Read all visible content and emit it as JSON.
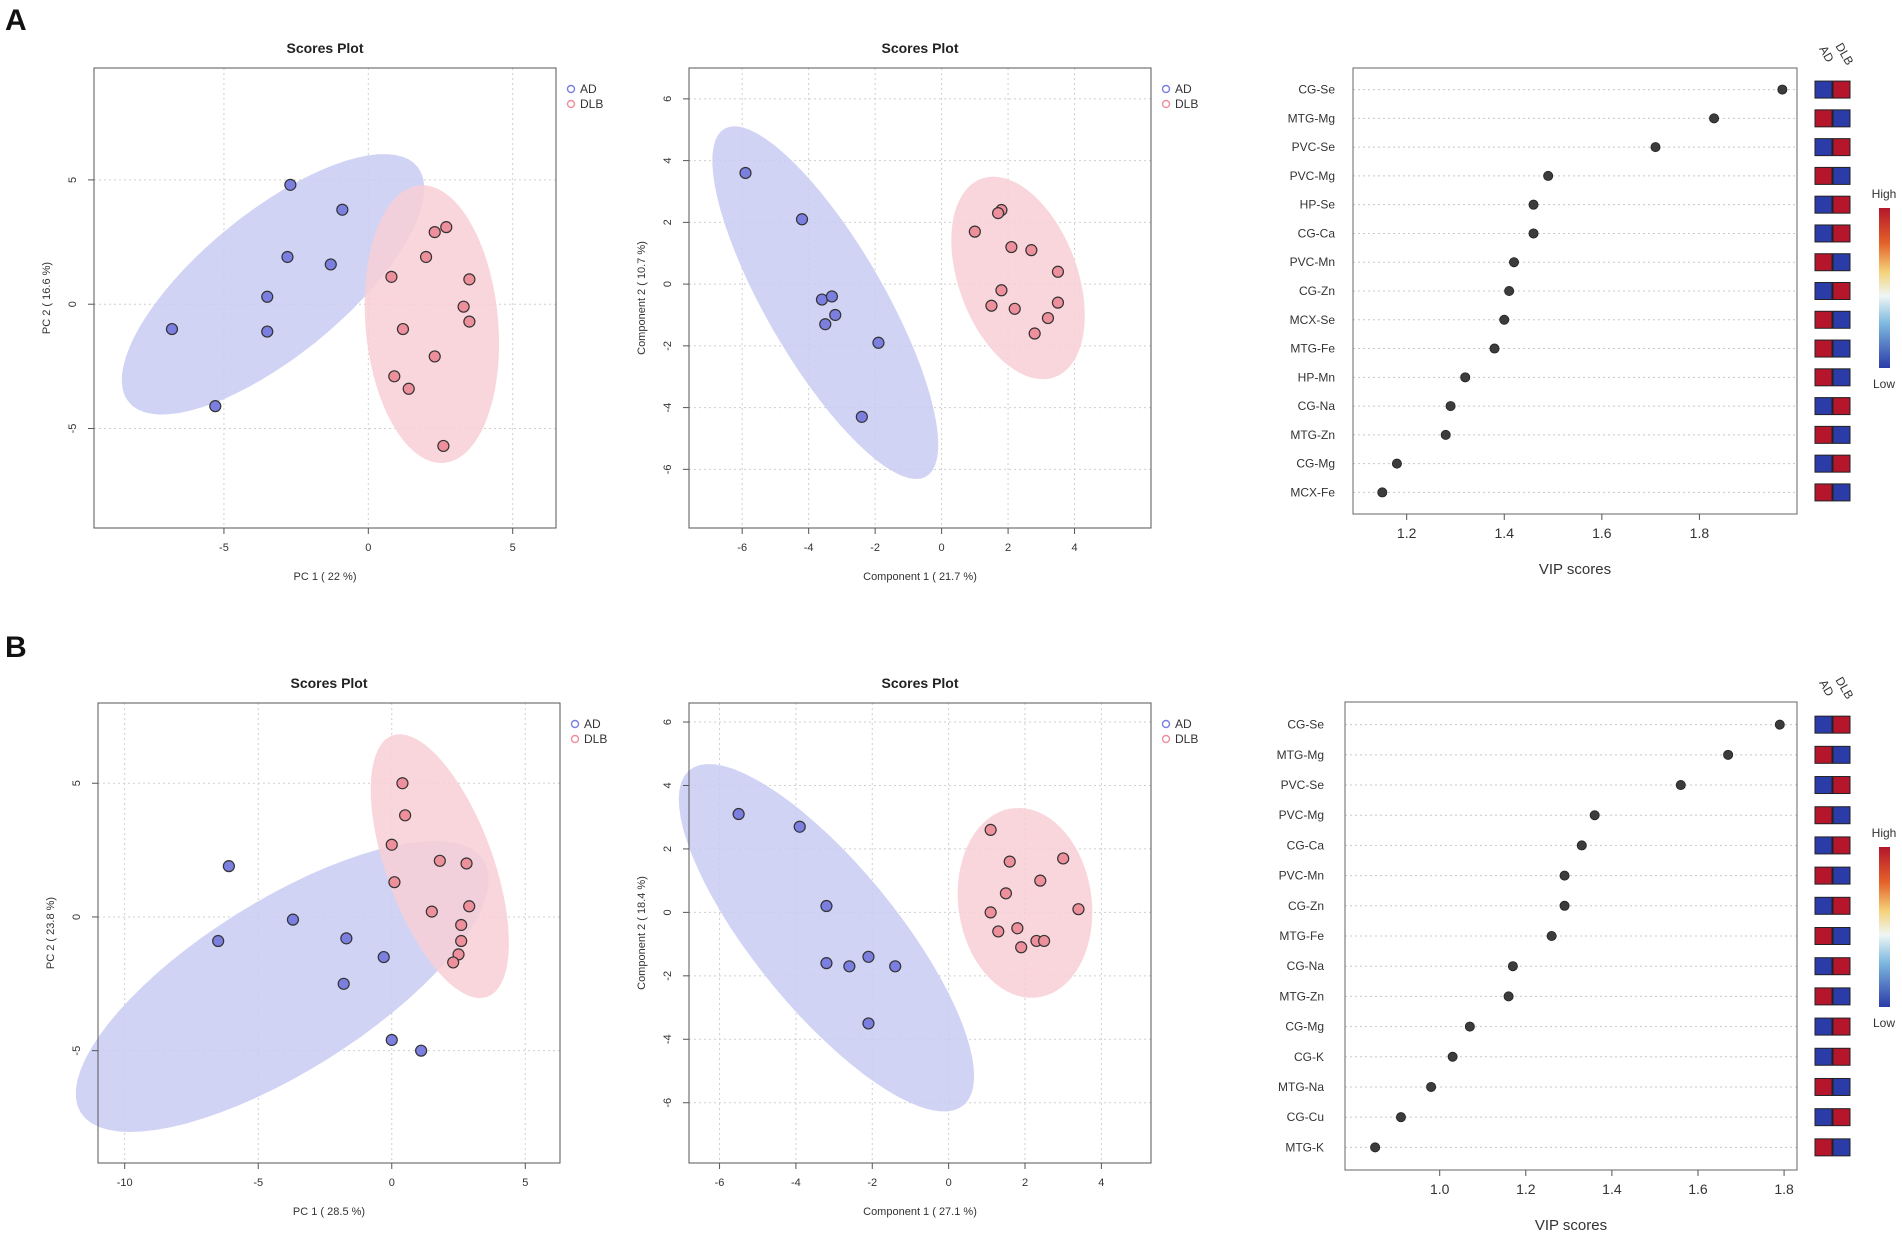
{
  "colors": {
    "AD": "#7b7fe0",
    "DLB": "#ee8f9c",
    "AD_fill": "#c9cbf3",
    "DLB_fill": "#f8cfd6",
    "high": "#b5162c",
    "low": "#2b3ca8"
  },
  "panels": {
    "A": "A",
    "B": "B"
  },
  "chart_data": [
    {
      "id": "A1",
      "type": "scatter",
      "title": "Scores Plot",
      "xlabel": "PC 1 ( 22 %)",
      "ylabel": "PC 2 ( 16.6 %)",
      "xlim": [
        -9.5,
        6.5
      ],
      "ylim": [
        -9,
        9.5
      ],
      "xticks": [
        -5,
        0,
        5
      ],
      "yticks": [
        -5,
        0,
        5
      ],
      "legend": [
        "AD",
        "DLB"
      ],
      "ellipses": [
        {
          "group": "AD",
          "cx": -3.3,
          "cy": 0.8,
          "rx": 6.9,
          "ry": 2.7,
          "angle": 45
        },
        {
          "group": "DLB",
          "cx": 2.2,
          "cy": -0.8,
          "rx": 5.6,
          "ry": 2.3,
          "angle": -86
        }
      ],
      "points": [
        {
          "group": "AD",
          "x": -2.7,
          "y": 4.8
        },
        {
          "group": "AD",
          "x": -0.9,
          "y": 3.8
        },
        {
          "group": "AD",
          "x": -2.8,
          "y": 1.9
        },
        {
          "group": "AD",
          "x": -1.3,
          "y": 1.6
        },
        {
          "group": "AD",
          "x": -3.5,
          "y": 0.3
        },
        {
          "group": "AD",
          "x": -6.8,
          "y": -1.0
        },
        {
          "group": "AD",
          "x": -3.5,
          "y": -1.1
        },
        {
          "group": "AD",
          "x": -5.3,
          "y": -4.1
        },
        {
          "group": "DLB",
          "x": 2.3,
          "y": 2.9
        },
        {
          "group": "DLB",
          "x": 2.7,
          "y": 3.1
        },
        {
          "group": "DLB",
          "x": 2.0,
          "y": 1.9
        },
        {
          "group": "DLB",
          "x": 0.8,
          "y": 1.1
        },
        {
          "group": "DLB",
          "x": 3.5,
          "y": 1.0
        },
        {
          "group": "DLB",
          "x": 3.3,
          "y": -0.1
        },
        {
          "group": "DLB",
          "x": 3.5,
          "y": -0.7
        },
        {
          "group": "DLB",
          "x": 1.2,
          "y": -1.0
        },
        {
          "group": "DLB",
          "x": 2.3,
          "y": -2.1
        },
        {
          "group": "DLB",
          "x": 0.9,
          "y": -2.9
        },
        {
          "group": "DLB",
          "x": 1.4,
          "y": -3.4
        },
        {
          "group": "DLB",
          "x": 2.6,
          "y": -5.7
        }
      ]
    },
    {
      "id": "A2",
      "type": "scatter",
      "title": "Scores Plot",
      "xlabel": "Component 1 ( 21.7 %)",
      "ylabel": "Component 2 ( 10.7 %)",
      "xlim": [
        -7.6,
        6.3
      ],
      "ylim": [
        -7.9,
        7.0
      ],
      "xticks": [
        -6,
        -4,
        -2,
        0,
        2,
        4
      ],
      "yticks": [
        -6,
        -4,
        -2,
        0,
        2,
        4,
        6
      ],
      "legend": [
        "AD",
        "DLB"
      ],
      "ellipses": [
        {
          "group": "AD",
          "cx": -3.5,
          "cy": -0.6,
          "rx": 6.4,
          "ry": 1.8,
          "angle": -62
        },
        {
          "group": "DLB",
          "cx": 2.3,
          "cy": 0.2,
          "rx": 3.4,
          "ry": 1.8,
          "angle": -72
        }
      ],
      "points": [
        {
          "group": "AD",
          "x": -5.9,
          "y": 3.6
        },
        {
          "group": "AD",
          "x": -4.2,
          "y": 2.1
        },
        {
          "group": "AD",
          "x": -3.6,
          "y": -0.5
        },
        {
          "group": "AD",
          "x": -3.3,
          "y": -0.4
        },
        {
          "group": "AD",
          "x": -3.2,
          "y": -1.0
        },
        {
          "group": "AD",
          "x": -3.5,
          "y": -1.3
        },
        {
          "group": "AD",
          "x": -1.9,
          "y": -1.9
        },
        {
          "group": "AD",
          "x": -2.4,
          "y": -4.3
        },
        {
          "group": "DLB",
          "x": 1.8,
          "y": 2.4
        },
        {
          "group": "DLB",
          "x": 1.7,
          "y": 2.3
        },
        {
          "group": "DLB",
          "x": 1.0,
          "y": 1.7
        },
        {
          "group": "DLB",
          "x": 2.1,
          "y": 1.2
        },
        {
          "group": "DLB",
          "x": 2.7,
          "y": 1.1
        },
        {
          "group": "DLB",
          "x": 3.5,
          "y": 0.4
        },
        {
          "group": "DLB",
          "x": 1.8,
          "y": -0.2
        },
        {
          "group": "DLB",
          "x": 3.5,
          "y": -0.6
        },
        {
          "group": "DLB",
          "x": 1.5,
          "y": -0.7
        },
        {
          "group": "DLB",
          "x": 2.2,
          "y": -0.8
        },
        {
          "group": "DLB",
          "x": 3.2,
          "y": -1.1
        },
        {
          "group": "DLB",
          "x": 2.8,
          "y": -1.6
        }
      ]
    },
    {
      "id": "A3",
      "type": "scatter",
      "subtype": "vip",
      "xlabel": "VIP scores",
      "xlim": [
        1.09,
        2.0
      ],
      "xticks": [
        1.2,
        1.4,
        1.6,
        1.8
      ],
      "features": [
        "CG-Se",
        "MTG-Mg",
        "PVC-Se",
        "PVC-Mg",
        "HP-Se",
        "CG-Ca",
        "PVC-Mn",
        "CG-Zn",
        "MCX-Se",
        "MTG-Fe",
        "HP-Mn",
        "CG-Na",
        "MTG-Zn",
        "CG-Mg",
        "MCX-Fe"
      ],
      "values": [
        1.97,
        1.83,
        1.71,
        1.49,
        1.46,
        1.46,
        1.42,
        1.41,
        1.4,
        1.38,
        1.32,
        1.29,
        1.28,
        1.18,
        1.15
      ],
      "heat_AD": [
        "low",
        "high",
        "low",
        "high",
        "low",
        "low",
        "high",
        "low",
        "high",
        "high",
        "high",
        "low",
        "high",
        "low",
        "high"
      ],
      "heat_DLB": [
        "high",
        "low",
        "high",
        "low",
        "high",
        "high",
        "low",
        "high",
        "low",
        "low",
        "low",
        "high",
        "low",
        "high",
        "low"
      ],
      "heat_groups": [
        "AD",
        "DLB"
      ],
      "colorbar": {
        "high": "High",
        "low": "Low"
      }
    },
    {
      "id": "B1",
      "type": "scatter",
      "title": "Scores Plot",
      "xlabel": "PC 1 ( 28.5 %)",
      "ylabel": "PC 2 ( 23.8 %)",
      "xlim": [
        -11,
        6.3
      ],
      "ylim": [
        -9.2,
        8.0
      ],
      "xticks": [
        -10,
        -5,
        0,
        5
      ],
      "yticks": [
        -5,
        0,
        5
      ],
      "legend": [
        "AD",
        "DLB"
      ],
      "ellipses": [
        {
          "group": "AD",
          "cx": -4.1,
          "cy": -2.6,
          "rx": 8.9,
          "ry": 3.2,
          "angle": 32
        },
        {
          "group": "DLB",
          "cx": 1.8,
          "cy": 1.9,
          "rx": 5.2,
          "ry": 2.0,
          "angle": -70
        }
      ],
      "points": [
        {
          "group": "AD",
          "x": -6.1,
          "y": 1.9
        },
        {
          "group": "AD",
          "x": -3.7,
          "y": -0.1
        },
        {
          "group": "AD",
          "x": -6.5,
          "y": -0.9
        },
        {
          "group": "AD",
          "x": -1.7,
          "y": -0.8
        },
        {
          "group": "AD",
          "x": -0.3,
          "y": -1.5
        },
        {
          "group": "AD",
          "x": -1.8,
          "y": -2.5
        },
        {
          "group": "AD",
          "x": 0.0,
          "y": -4.6
        },
        {
          "group": "AD",
          "x": 1.1,
          "y": -5.0
        },
        {
          "group": "DLB",
          "x": 0.4,
          "y": 5.0
        },
        {
          "group": "DLB",
          "x": 0.5,
          "y": 3.8
        },
        {
          "group": "DLB",
          "x": 0.0,
          "y": 2.7
        },
        {
          "group": "DLB",
          "x": 1.8,
          "y": 2.1
        },
        {
          "group": "DLB",
          "x": 2.8,
          "y": 2.0
        },
        {
          "group": "DLB",
          "x": 0.1,
          "y": 1.3
        },
        {
          "group": "DLB",
          "x": 2.9,
          "y": 0.4
        },
        {
          "group": "DLB",
          "x": 1.5,
          "y": 0.2
        },
        {
          "group": "DLB",
          "x": 2.6,
          "y": -0.3
        },
        {
          "group": "DLB",
          "x": 2.6,
          "y": -0.9
        },
        {
          "group": "DLB",
          "x": 2.5,
          "y": -1.4
        },
        {
          "group": "DLB",
          "x": 2.3,
          "y": -1.7
        }
      ]
    },
    {
      "id": "B2",
      "type": "scatter",
      "title": "Scores Plot",
      "xlabel": "Component 1 ( 27.1 %)",
      "ylabel": "Component 2 ( 18.4 %)",
      "xlim": [
        -6.8,
        5.3
      ],
      "ylim": [
        -7.9,
        6.6
      ],
      "xticks": [
        -6,
        -4,
        -2,
        0,
        2,
        4
      ],
      "yticks": [
        -6,
        -4,
        -2,
        0,
        2,
        4,
        6
      ],
      "legend": [
        "AD",
        "DLB"
      ],
      "ellipses": [
        {
          "group": "AD",
          "cx": -3.2,
          "cy": -0.8,
          "rx": 6.4,
          "ry": 2.0,
          "angle": -57
        },
        {
          "group": "DLB",
          "cx": 2.0,
          "cy": 0.3,
          "rx": 3.0,
          "ry": 1.75,
          "angle": -85
        }
      ],
      "points": [
        {
          "group": "AD",
          "x": -5.5,
          "y": 3.1
        },
        {
          "group": "AD",
          "x": -3.9,
          "y": 2.7
        },
        {
          "group": "AD",
          "x": -3.2,
          "y": 0.2
        },
        {
          "group": "AD",
          "x": -3.2,
          "y": -1.6
        },
        {
          "group": "AD",
          "x": -2.6,
          "y": -1.7
        },
        {
          "group": "AD",
          "x": -2.1,
          "y": -1.4
        },
        {
          "group": "AD",
          "x": -1.4,
          "y": -1.7
        },
        {
          "group": "AD",
          "x": -2.1,
          "y": -3.5
        },
        {
          "group": "DLB",
          "x": 1.1,
          "y": 2.6
        },
        {
          "group": "DLB",
          "x": 1.6,
          "y": 1.6
        },
        {
          "group": "DLB",
          "x": 3.0,
          "y": 1.7
        },
        {
          "group": "DLB",
          "x": 2.4,
          "y": 1.0
        },
        {
          "group": "DLB",
          "x": 1.5,
          "y": 0.6
        },
        {
          "group": "DLB",
          "x": 3.4,
          "y": 0.1
        },
        {
          "group": "DLB",
          "x": 1.1,
          "y": 0.0
        },
        {
          "group": "DLB",
          "x": 1.3,
          "y": -0.6
        },
        {
          "group": "DLB",
          "x": 1.8,
          "y": -0.5
        },
        {
          "group": "DLB",
          "x": 2.3,
          "y": -0.9
        },
        {
          "group": "DLB",
          "x": 2.5,
          "y": -0.9
        },
        {
          "group": "DLB",
          "x": 1.9,
          "y": -1.1
        }
      ]
    },
    {
      "id": "B3",
      "type": "scatter",
      "subtype": "vip",
      "xlabel": "VIP scores",
      "xlim": [
        0.78,
        1.83
      ],
      "xticks": [
        1.0,
        1.2,
        1.4,
        1.6,
        1.8
      ],
      "features": [
        "CG-Se",
        "MTG-Mg",
        "PVC-Se",
        "PVC-Mg",
        "CG-Ca",
        "PVC-Mn",
        "CG-Zn",
        "MTG-Fe",
        "CG-Na",
        "MTG-Zn",
        "CG-Mg",
        "CG-K",
        "MTG-Na",
        "CG-Cu",
        "MTG-K"
      ],
      "values": [
        1.79,
        1.67,
        1.56,
        1.36,
        1.33,
        1.29,
        1.29,
        1.26,
        1.17,
        1.16,
        1.07,
        1.03,
        0.98,
        0.91,
        0.85
      ],
      "heat_AD": [
        "low",
        "high",
        "low",
        "high",
        "low",
        "high",
        "low",
        "high",
        "low",
        "high",
        "low",
        "low",
        "high",
        "low",
        "high"
      ],
      "heat_DLB": [
        "high",
        "low",
        "high",
        "low",
        "high",
        "low",
        "high",
        "low",
        "high",
        "low",
        "high",
        "high",
        "low",
        "high",
        "low"
      ],
      "heat_groups": [
        "AD",
        "DLB"
      ],
      "colorbar": {
        "high": "High",
        "low": "Low"
      }
    }
  ]
}
